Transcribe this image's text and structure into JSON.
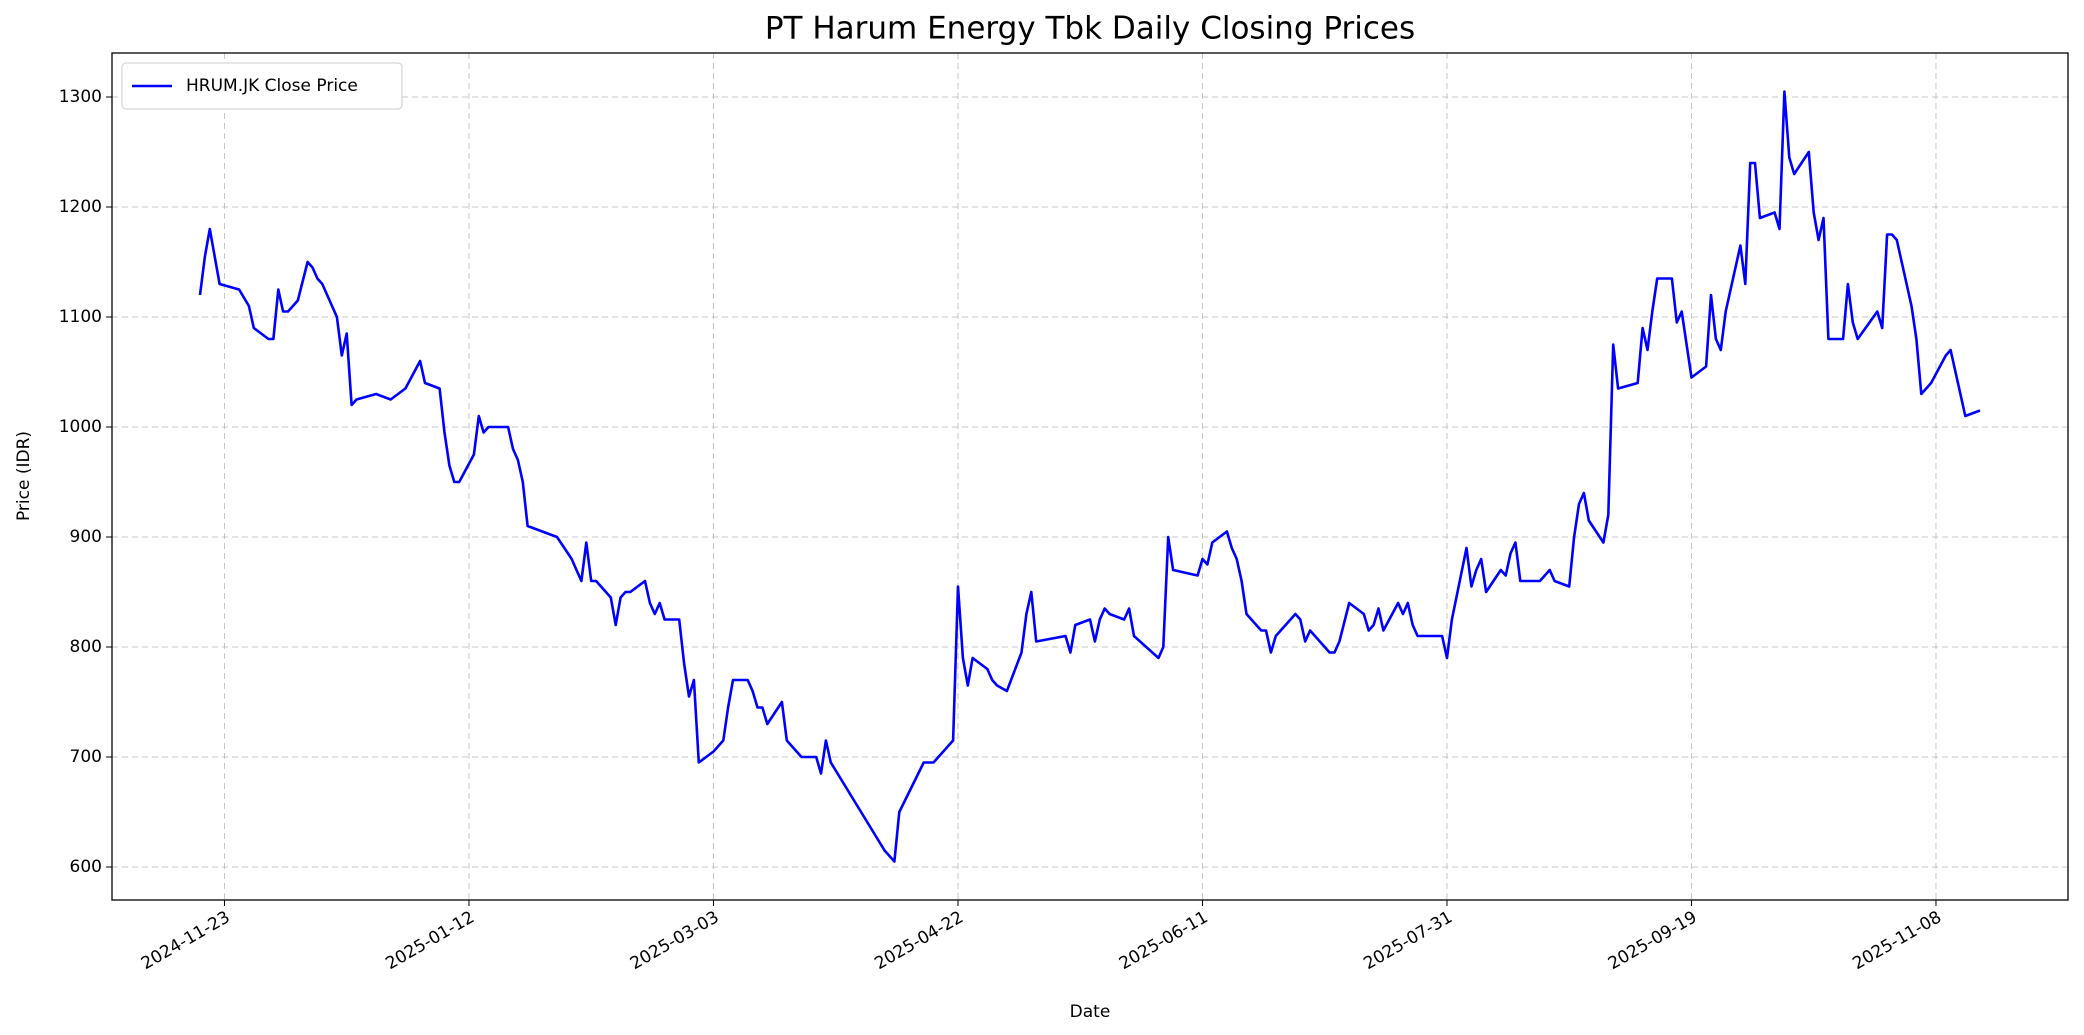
{
  "chart_data": {
    "type": "line",
    "title": "PT Harum Energy Tbk Daily Closing Prices",
    "xlabel": "Date",
    "ylabel": "Price (IDR)",
    "legend": "upper left",
    "grid": true,
    "xlim": [
      "2024-10-31",
      "2025-12-05"
    ],
    "ylim": [
      570,
      1340
    ],
    "xticks": [
      "2024-11-23",
      "2025-01-12",
      "2025-03-03",
      "2025-04-22",
      "2025-06-11",
      "2025-07-31",
      "2025-09-19",
      "2025-11-08"
    ],
    "yticks": [
      600,
      700,
      800,
      900,
      1000,
      1100,
      1200,
      1300
    ],
    "x": [
      "2024-11-18",
      "2024-11-19",
      "2024-11-20",
      "2024-11-22",
      "2024-11-26",
      "2024-11-28",
      "2024-11-29",
      "2024-12-02",
      "2024-12-03",
      "2024-12-04",
      "2024-12-05",
      "2024-12-06",
      "2024-12-08",
      "2024-12-10",
      "2024-12-11",
      "2024-12-12",
      "2024-12-13",
      "2024-12-16",
      "2024-12-17",
      "2024-12-18",
      "2024-12-19",
      "2024-12-20",
      "2024-12-24",
      "2024-12-27",
      "2024-12-30",
      "2025-01-02",
      "2025-01-03",
      "2025-01-06",
      "2025-01-07",
      "2025-01-08",
      "2025-01-09",
      "2025-01-10",
      "2025-01-13",
      "2025-01-14",
      "2025-01-15",
      "2025-01-16",
      "2025-01-20",
      "2025-01-21",
      "2025-01-22",
      "2025-01-23",
      "2025-01-24",
      "2025-01-30",
      "2025-02-02",
      "2025-02-03",
      "2025-02-04",
      "2025-02-05",
      "2025-02-06",
      "2025-02-07",
      "2025-02-10",
      "2025-02-11",
      "2025-02-12",
      "2025-02-13",
      "2025-02-14",
      "2025-02-17",
      "2025-02-18",
      "2025-02-19",
      "2025-02-20",
      "2025-02-21",
      "2025-02-24",
      "2025-02-25",
      "2025-02-26",
      "2025-02-27",
      "2025-02-28",
      "2025-03-03",
      "2025-03-05",
      "2025-03-06",
      "2025-03-07",
      "2025-03-10",
      "2025-03-11",
      "2025-03-12",
      "2025-03-13",
      "2025-03-14",
      "2025-03-17",
      "2025-03-18",
      "2025-03-21",
      "2025-03-24",
      "2025-03-25",
      "2025-03-26",
      "2025-03-27",
      "2025-04-07",
      "2025-04-09",
      "2025-04-10",
      "2025-04-15",
      "2025-04-17",
      "2025-04-21",
      "2025-04-22",
      "2025-04-23",
      "2025-04-24",
      "2025-04-25",
      "2025-04-28",
      "2025-04-29",
      "2025-04-30",
      "2025-05-02",
      "2025-05-05",
      "2025-05-06",
      "2025-05-07",
      "2025-05-08",
      "2025-05-14",
      "2025-05-15",
      "2025-05-16",
      "2025-05-19",
      "2025-05-20",
      "2025-05-21",
      "2025-05-22",
      "2025-05-23",
      "2025-05-26",
      "2025-05-27",
      "2025-05-28",
      "2025-06-02",
      "2025-06-03",
      "2025-06-04",
      "2025-06-05",
      "2025-06-10",
      "2025-06-11",
      "2025-06-12",
      "2025-06-13",
      "2025-06-16",
      "2025-06-17",
      "2025-06-18",
      "2025-06-19",
      "2025-06-20",
      "2025-06-23",
      "2025-06-24",
      "2025-06-25",
      "2025-06-26",
      "2025-06-30",
      "2025-07-01",
      "2025-07-02",
      "2025-07-03",
      "2025-07-07",
      "2025-07-08",
      "2025-07-09",
      "2025-07-11",
      "2025-07-14",
      "2025-07-15",
      "2025-07-16",
      "2025-07-17",
      "2025-07-18",
      "2025-07-21",
      "2025-07-22",
      "2025-07-23",
      "2025-07-24",
      "2025-07-25",
      "2025-07-30",
      "2025-07-31",
      "2025-08-01",
      "2025-08-04",
      "2025-08-05",
      "2025-08-06",
      "2025-08-07",
      "2025-08-08",
      "2025-08-11",
      "2025-08-12",
      "2025-08-13",
      "2025-08-14",
      "2025-08-15",
      "2025-08-19",
      "2025-08-20",
      "2025-08-21",
      "2025-08-22",
      "2025-08-25",
      "2025-08-26",
      "2025-08-27",
      "2025-08-28",
      "2025-08-29",
      "2025-09-01",
      "2025-09-02",
      "2025-09-03",
      "2025-09-04",
      "2025-09-08",
      "2025-09-09",
      "2025-09-10",
      "2025-09-11",
      "2025-09-12",
      "2025-09-15",
      "2025-09-16",
      "2025-09-17",
      "2025-09-19",
      "2025-09-22",
      "2025-09-23",
      "2025-09-24",
      "2025-09-25",
      "2025-09-26",
      "2025-09-29",
      "2025-09-30",
      "2025-10-01",
      "2025-10-02",
      "2025-10-03",
      "2025-10-06",
      "2025-10-07",
      "2025-10-08",
      "2025-10-09",
      "2025-10-10",
      "2025-10-13",
      "2025-10-14",
      "2025-10-15",
      "2025-10-16",
      "2025-10-17",
      "2025-10-20",
      "2025-10-21",
      "2025-10-22",
      "2025-10-23",
      "2025-10-27",
      "2025-10-28",
      "2025-10-29",
      "2025-10-30",
      "2025-10-31",
      "2025-11-03",
      "2025-11-04",
      "2025-11-05",
      "2025-11-07",
      "2025-11-10",
      "2025-11-11",
      "2025-11-14",
      "2025-11-17"
    ],
    "series": [
      {
        "name": "HRUM.JK Close Price",
        "color": "#0000ff",
        "values": [
          1120,
          1155,
          1180,
          1130,
          1125,
          1110,
          1090,
          1080,
          1080,
          1125,
          1105,
          1105,
          1115,
          1150,
          1145,
          1135,
          1130,
          1100,
          1065,
          1085,
          1020,
          1025,
          1030,
          1025,
          1035,
          1060,
          1040,
          1035,
          995,
          965,
          950,
          950,
          975,
          1010,
          995,
          1000,
          1000,
          980,
          970,
          950,
          910,
          900,
          880,
          870,
          860,
          895,
          860,
          860,
          845,
          820,
          845,
          850,
          850,
          860,
          840,
          830,
          840,
          825,
          825,
          785,
          755,
          770,
          695,
          705,
          715,
          745,
          770,
          770,
          760,
          745,
          745,
          730,
          750,
          715,
          700,
          700,
          685,
          715,
          695,
          615,
          605,
          650,
          695,
          695,
          715,
          855,
          790,
          765,
          790,
          780,
          770,
          765,
          760,
          795,
          830,
          850,
          805,
          810,
          795,
          820,
          825,
          805,
          825,
          835,
          830,
          825,
          835,
          810,
          790,
          800,
          900,
          870,
          865,
          880,
          875,
          895,
          905,
          890,
          880,
          860,
          830,
          815,
          815,
          795,
          810,
          830,
          825,
          805,
          815,
          795,
          795,
          805,
          840,
          830,
          815,
          820,
          835,
          815,
          840,
          830,
          840,
          820,
          810,
          810,
          790,
          825,
          890,
          855,
          870,
          880,
          850,
          870,
          865,
          885,
          895,
          860,
          860,
          865,
          870,
          860,
          855,
          900,
          930,
          940,
          915,
          895,
          920,
          1075,
          1035,
          1040,
          1090,
          1070,
          1105,
          1135,
          1135,
          1095,
          1105,
          1045,
          1055,
          1120,
          1080,
          1070,
          1105,
          1165,
          1130,
          1240,
          1240,
          1190,
          1195,
          1180,
          1305,
          1245,
          1230,
          1250,
          1195,
          1170,
          1190,
          1080,
          1080,
          1130,
          1095,
          1080,
          1105,
          1090,
          1175,
          1175,
          1170,
          1110,
          1080,
          1030,
          1040,
          1065,
          1070,
          1010,
          1015
        ]
      }
    ]
  }
}
